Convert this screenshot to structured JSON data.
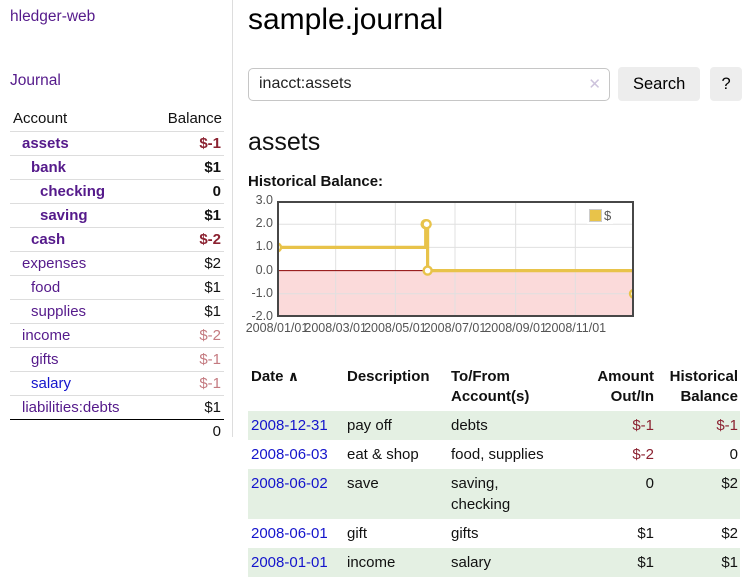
{
  "sidebar": {
    "app_title": "hledger-web",
    "nav_journal": "Journal",
    "table": {
      "header_account": "Account",
      "header_balance": "Balance",
      "accounts": [
        {
          "name": "assets",
          "balance": "$-1"
        },
        {
          "name": "bank",
          "balance": "$1"
        },
        {
          "name": "checking",
          "balance": "0"
        },
        {
          "name": "saving",
          "balance": "$1"
        },
        {
          "name": "cash",
          "balance": "$-2"
        },
        {
          "name": "expenses",
          "balance": "$2"
        },
        {
          "name": "food",
          "balance": "$1"
        },
        {
          "name": "supplies",
          "balance": "$1"
        },
        {
          "name": "income",
          "balance": "$-2"
        },
        {
          "name": "gifts",
          "balance": "$-1"
        },
        {
          "name": "salary",
          "balance": "$-1"
        },
        {
          "name": "liabilities:debts",
          "balance": "$1"
        }
      ],
      "total": "0"
    }
  },
  "header": {
    "title": "sample.journal"
  },
  "search": {
    "value": "inacct:assets",
    "clear_icon": "✕",
    "button_label": "Search",
    "help_label": "?"
  },
  "account_page": {
    "title": "assets",
    "chart_heading": "Historical Balance:"
  },
  "chart_data": {
    "type": "line",
    "step": true,
    "title": "Historical Balance:",
    "series": [
      {
        "name": "$",
        "color": "#e8c34a",
        "points": [
          {
            "date": "2008-01-01",
            "value": 1
          },
          {
            "date": "2008-06-01",
            "value": 2
          },
          {
            "date": "2008-06-02",
            "value": 2
          },
          {
            "date": "2008-06-03",
            "value": 0
          },
          {
            "date": "2008-12-31",
            "value": -1
          }
        ]
      }
    ],
    "xlim": [
      "2008-01-01",
      "2008-12-31"
    ],
    "ylim": [
      -2,
      3
    ],
    "yticks": [
      {
        "value": 3,
        "label": "3.0"
      },
      {
        "value": 2,
        "label": "2.0"
      },
      {
        "value": 1,
        "label": "1.0"
      },
      {
        "value": 0,
        "label": "0.0"
      },
      {
        "value": -1,
        "label": "-1.0"
      },
      {
        "value": -2,
        "label": "-2.0"
      }
    ],
    "xticks": [
      {
        "date": "2008-01-01",
        "label": "2008/01/01"
      },
      {
        "date": "2008-03-01",
        "label": "2008/03/01"
      },
      {
        "date": "2008-05-01",
        "label": "2008/05/01"
      },
      {
        "date": "2008-07-01",
        "label": "2008/07/01"
      },
      {
        "date": "2008-09-01",
        "label": "2008/09/01"
      },
      {
        "date": "2008-11-01",
        "label": "2008/11/01"
      }
    ],
    "legend": {
      "label": "$",
      "position": "top-right"
    },
    "grid": true,
    "colors": {
      "negative_region": "#fbdada",
      "zero_line": "#8b0000",
      "grid_line": "#e0e0e0",
      "border": "#474747",
      "marker_fill": "#ffffff"
    }
  },
  "transactions": {
    "headers": {
      "date": "Date",
      "sort_icon": "∧",
      "description": "Description",
      "accounts": "To/From Account(s)",
      "amount": "Amount Out/In",
      "balance": "Historical Balance"
    },
    "rows": [
      {
        "date": "2008-12-31",
        "description": "pay off",
        "accounts": "debts",
        "amount": "$-1",
        "balance": "$-1"
      },
      {
        "date": "2008-06-03",
        "description": "eat & shop",
        "accounts": "food, supplies",
        "amount": "$-2",
        "balance": "0"
      },
      {
        "date": "2008-06-02",
        "description": "save",
        "accounts": "saving,\nchecking",
        "amount": "0",
        "balance": "$2"
      },
      {
        "date": "2008-06-01",
        "description": "gift",
        "accounts": "gifts",
        "amount": "$1",
        "balance": "$2"
      },
      {
        "date": "2008-01-01",
        "description": "income",
        "accounts": "salary",
        "amount": "$1",
        "balance": "$1"
      }
    ]
  }
}
